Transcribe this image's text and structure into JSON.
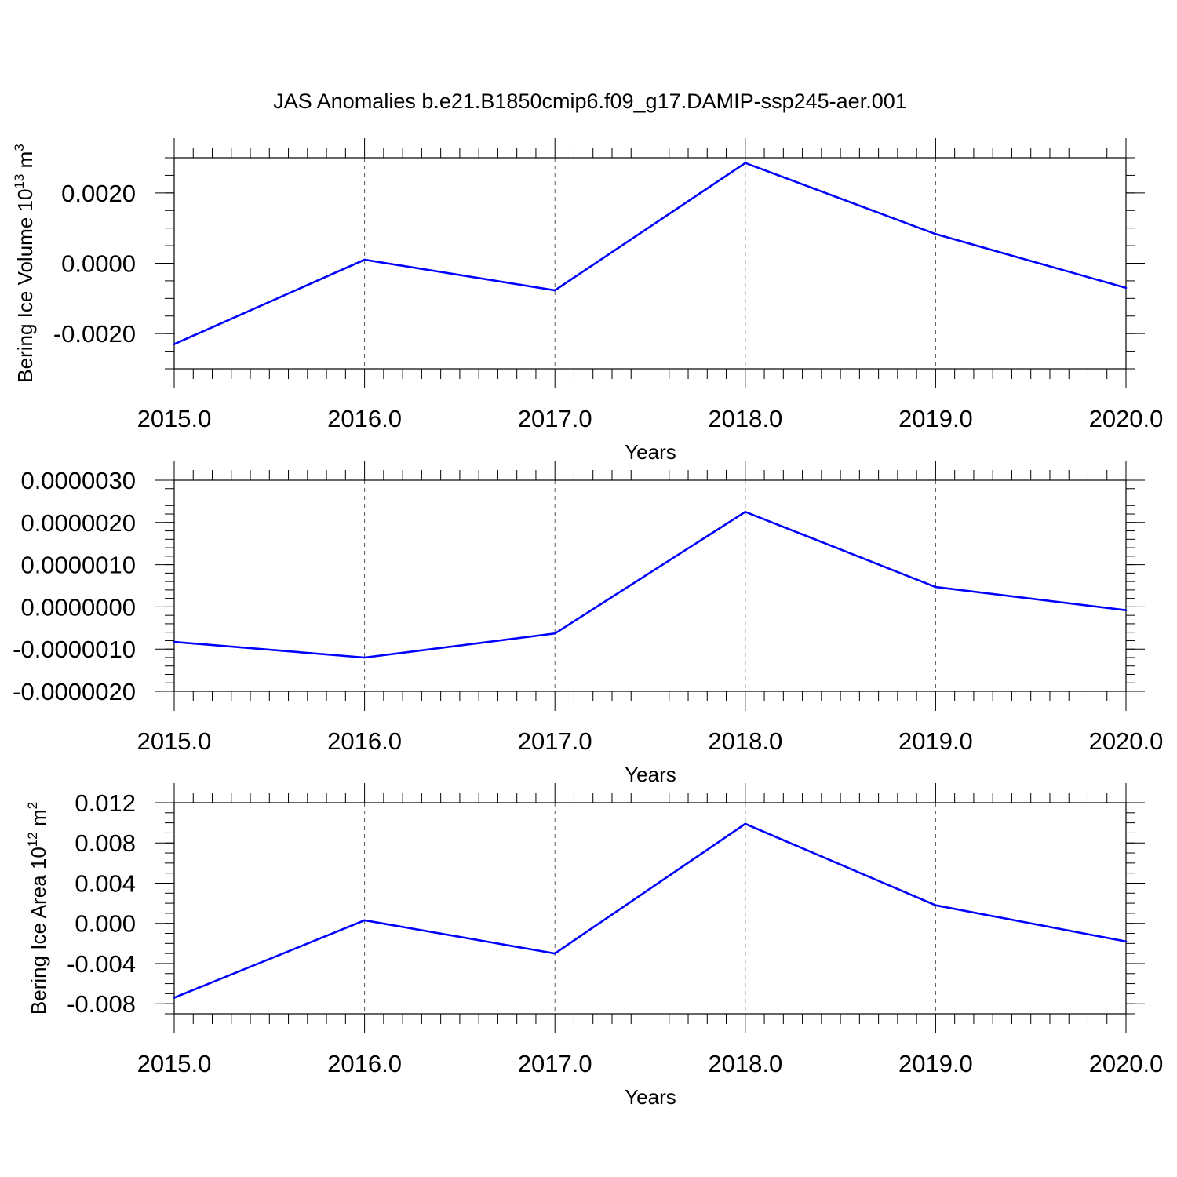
{
  "title": "JAS Anomalies b.e21.B1850cmip6.f09_g17.DAMIP-ssp245-aer.001",
  "colors": {
    "series": "#0000ff",
    "axis": "#000000",
    "grid": "#555555"
  },
  "chart_data": [
    {
      "type": "line",
      "ylabel": "Bering Ice Volume 10",
      "ylabel_exp": "13",
      "ylabel_unit": " m",
      "ylabel_unit_exp": "3",
      "xlabel": "Years",
      "x": [
        2015,
        2016,
        2017,
        2018,
        2019,
        2020
      ],
      "x_ticks": [
        "2015.0",
        "2016.0",
        "2017.0",
        "2018.0",
        "2019.0",
        "2020.0"
      ],
      "xlim": [
        2015,
        2020
      ],
      "ylim": [
        -0.003,
        0.003
      ],
      "y_ticks": [
        "-0.0020",
        "0.0000",
        "0.0020"
      ],
      "y_tick_values": [
        -0.002,
        0.0,
        0.002
      ],
      "y_minor_step": 0.0005,
      "grid": "vertical dashed at major x ticks",
      "series": [
        {
          "values": [
            -0.0023,
            0.0001,
            -0.00077,
            0.00285,
            0.00083,
            -0.0007
          ]
        }
      ]
    },
    {
      "type": "line",
      "ylabel": "",
      "xlabel": "Years",
      "x": [
        2015,
        2016,
        2017,
        2018,
        2019,
        2020
      ],
      "x_ticks": [
        "2015.0",
        "2016.0",
        "2017.0",
        "2018.0",
        "2019.0",
        "2020.0"
      ],
      "xlim": [
        2015,
        2020
      ],
      "ylim": [
        -2e-06,
        3e-06
      ],
      "y_ticks": [
        "-0.0000020",
        "-0.0000010",
        "0.0000000",
        "0.0000010",
        "0.0000020",
        "0.0000030"
      ],
      "y_tick_values": [
        -2e-06,
        -1e-06,
        0.0,
        1e-06,
        2e-06,
        3e-06
      ],
      "y_minor_step": 2e-07,
      "grid": "vertical dashed at major x ticks",
      "series": [
        {
          "values": [
            -8.3e-07,
            -1.2e-06,
            -6.3e-07,
            2.25e-06,
            4.7e-07,
            -8e-08
          ]
        }
      ]
    },
    {
      "type": "line",
      "ylabel": "Bering Ice Area 10",
      "ylabel_exp": "12",
      "ylabel_unit": " m",
      "ylabel_unit_exp": "2",
      "xlabel": "Years",
      "x": [
        2015,
        2016,
        2017,
        2018,
        2019,
        2020
      ],
      "x_ticks": [
        "2015.0",
        "2016.0",
        "2017.0",
        "2018.0",
        "2019.0",
        "2020.0"
      ],
      "xlim": [
        2015,
        2020
      ],
      "ylim": [
        -0.009,
        0.012
      ],
      "y_ticks": [
        "-0.008",
        "-0.004",
        "0.000",
        "0.004",
        "0.008",
        "0.012"
      ],
      "y_tick_values": [
        -0.008,
        -0.004,
        0.0,
        0.004,
        0.008,
        0.012
      ],
      "y_minor_step": 0.001,
      "grid": "vertical dashed at major x ticks",
      "series": [
        {
          "values": [
            -0.0074,
            0.0003,
            -0.003,
            0.0099,
            0.0018,
            -0.0018
          ]
        }
      ]
    }
  ]
}
